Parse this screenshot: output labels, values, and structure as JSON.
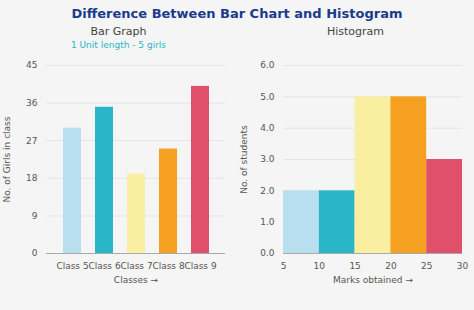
{
  "title": "Difference Between Bar Chart and Histogram",
  "chart_data": [
    {
      "type": "bar",
      "title": "Bar Graph",
      "subtitle": "1 Unit length - 5 girls",
      "categories": [
        "Class 5",
        "Class 6",
        "Class 7",
        "Class 8",
        "Class 9"
      ],
      "values": [
        30,
        35,
        19,
        25,
        40
      ],
      "colors": [
        "#b8dff0",
        "#29b6c8",
        "#faeea0",
        "#f5a020",
        "#e0506a"
      ],
      "ylabel": "No. of Girls in class",
      "xlabel": "Classes →",
      "ylim": [
        0,
        45
      ],
      "yticks": [
        0,
        9,
        18,
        27,
        36,
        45
      ],
      "grid": true
    },
    {
      "type": "histogram",
      "title": "Histogram",
      "bins": [
        5,
        10,
        15,
        20,
        25,
        30
      ],
      "values": [
        2,
        2,
        5,
        5,
        3
      ],
      "colors": [
        "#b8dff0",
        "#29b6c8",
        "#faeea0",
        "#f5a020",
        "#e0506a"
      ],
      "ylabel": "No. of students",
      "xlabel": "Marks obtained →",
      "xlim": [
        5,
        30
      ],
      "xticks": [
        5,
        10,
        15,
        20,
        25,
        30
      ],
      "ylim": [
        0,
        6
      ],
      "yticks": [
        0,
        1,
        2,
        3,
        4,
        5,
        6
      ],
      "grid": true
    }
  ]
}
